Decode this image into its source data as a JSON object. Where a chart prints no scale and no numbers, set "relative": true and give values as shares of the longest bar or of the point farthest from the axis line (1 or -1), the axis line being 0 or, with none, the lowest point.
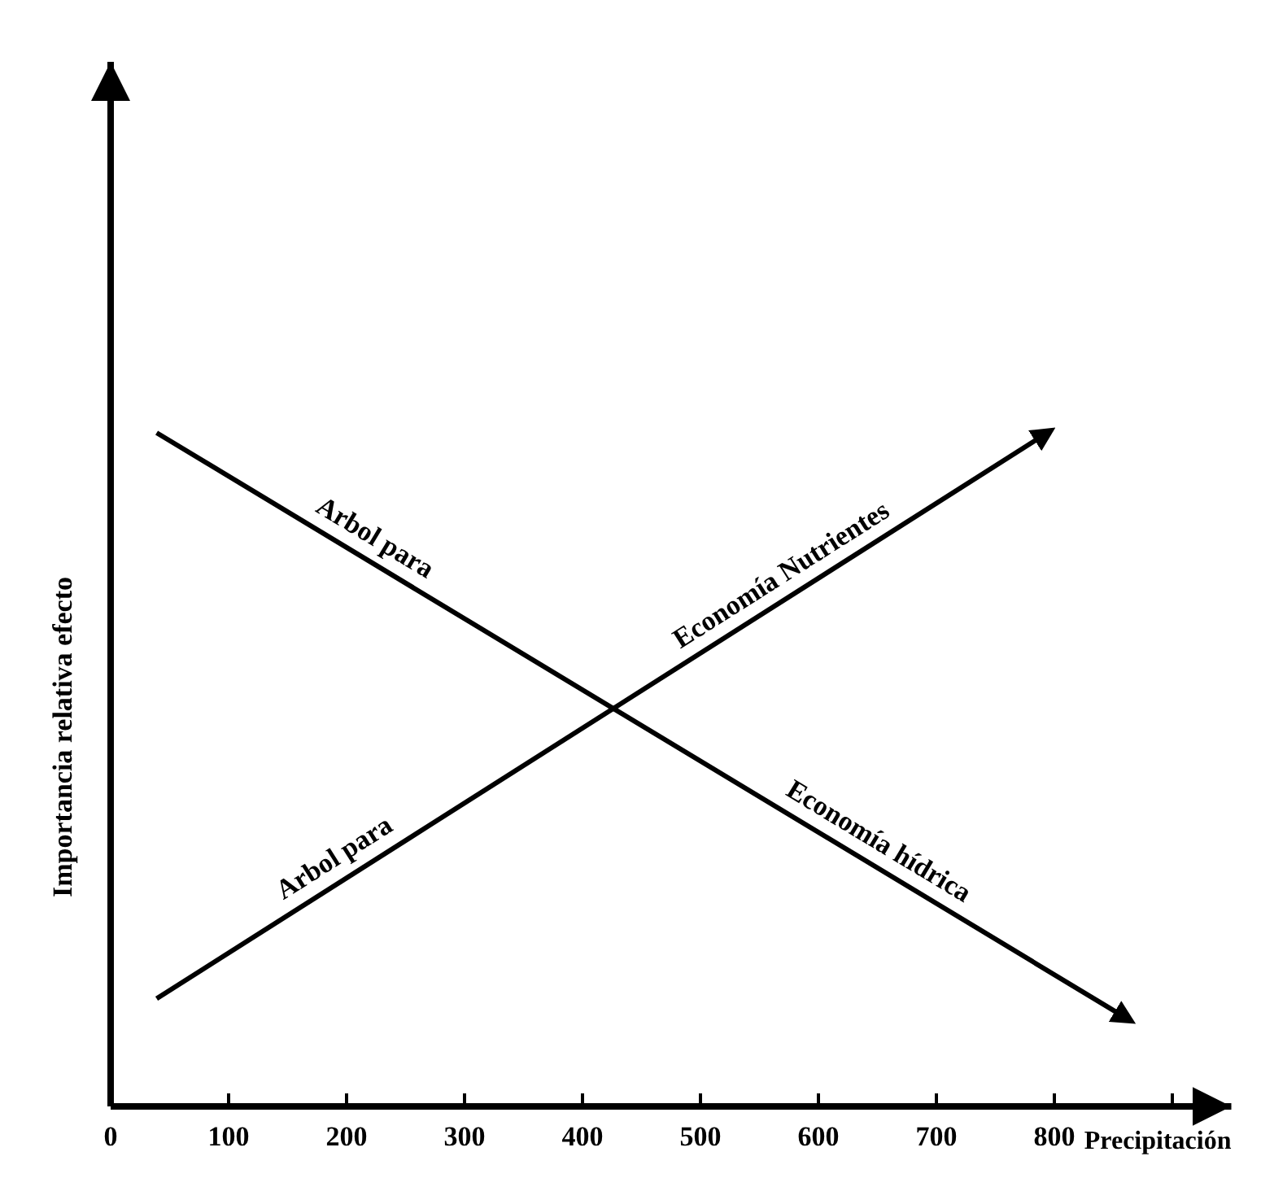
{
  "chart_data": {
    "type": "line",
    "relative": true,
    "xlabel": "Precipitación",
    "ylabel": "Importancia relativa efecto",
    "xlim": [
      0,
      950
    ],
    "xticks": [
      0,
      100,
      200,
      300,
      400,
      500,
      600,
      700,
      800,
      {
        "value": 900,
        "label": null
      }
    ],
    "series": [
      {
        "color": "#000000",
        "x": [
          39,
          862
        ],
        "values": [
          1,
          0.13
        ]
      },
      {
        "color": "#000000",
        "x": [
          39,
          794
        ],
        "values": [
          0.16,
          1
        ]
      }
    ],
    "annotations": [
      {
        "text": "Arbol para",
        "x": 214,
        "y": 0.815
      },
      {
        "text": "Economía hídrica",
        "x": 641,
        "y": 0.364
      },
      {
        "text": "Economía Nutrientes",
        "x": 579,
        "y": 0.76
      },
      {
        "text": "Arbol para",
        "x": 200,
        "y": 0.34
      }
    ]
  }
}
